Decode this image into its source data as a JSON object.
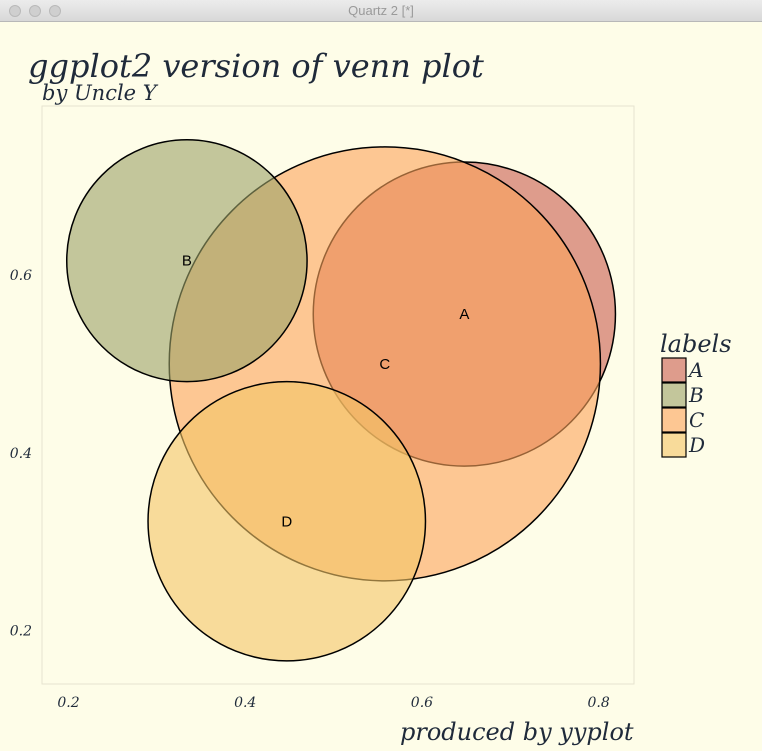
{
  "window": {
    "title": "Quartz 2 [*]",
    "buttons": [
      "close-button",
      "minimize-button",
      "zoom-button"
    ]
  },
  "chart_data": {
    "type": "scatter",
    "title": "ggplot2 version of venn plot",
    "subtitle": "by Uncle Y",
    "caption": "produced by yyplot",
    "xlabel": "",
    "ylabel": "",
    "xlim": [
      0.17,
      0.84
    ],
    "ylim": [
      0.14,
      0.79
    ],
    "x_ticks": [
      0.2,
      0.4,
      0.6,
      0.8
    ],
    "x_tick_labels": [
      "0.2",
      "0.4",
      "0.6",
      "0.8"
    ],
    "y_ticks": [
      0.2,
      0.4,
      0.6
    ],
    "y_tick_labels": [
      "0.2",
      "0.4",
      "0.6"
    ],
    "grid": false,
    "legend": {
      "title": "labels",
      "position": "right"
    },
    "circles": [
      {
        "label": "A",
        "x": 0.648,
        "y": 0.556,
        "r": 0.171,
        "color": "#c85b4e",
        "label_x": 0.648,
        "label_y": 0.556
      },
      {
        "label": "C",
        "x": 0.558,
        "y": 0.5,
        "r": 0.244,
        "color": "#fba35a",
        "label_x": 0.558,
        "label_y": 0.5
      },
      {
        "label": "D",
        "x": 0.447,
        "y": 0.323,
        "r": 0.157,
        "color": "#f4c565",
        "label_x": 0.447,
        "label_y": 0.323
      },
      {
        "label": "B",
        "x": 0.334,
        "y": 0.616,
        "r": 0.136,
        "color": "#9ba267",
        "label_x": 0.334,
        "label_y": 0.616
      }
    ],
    "legend_items": [
      {
        "label": "A",
        "color": "#c85b4e"
      },
      {
        "label": "B",
        "color": "#9ba267"
      },
      {
        "label": "C",
        "color": "#fba35a"
      },
      {
        "label": "D",
        "color": "#f4c565"
      }
    ],
    "fill_opacity": 0.6
  }
}
